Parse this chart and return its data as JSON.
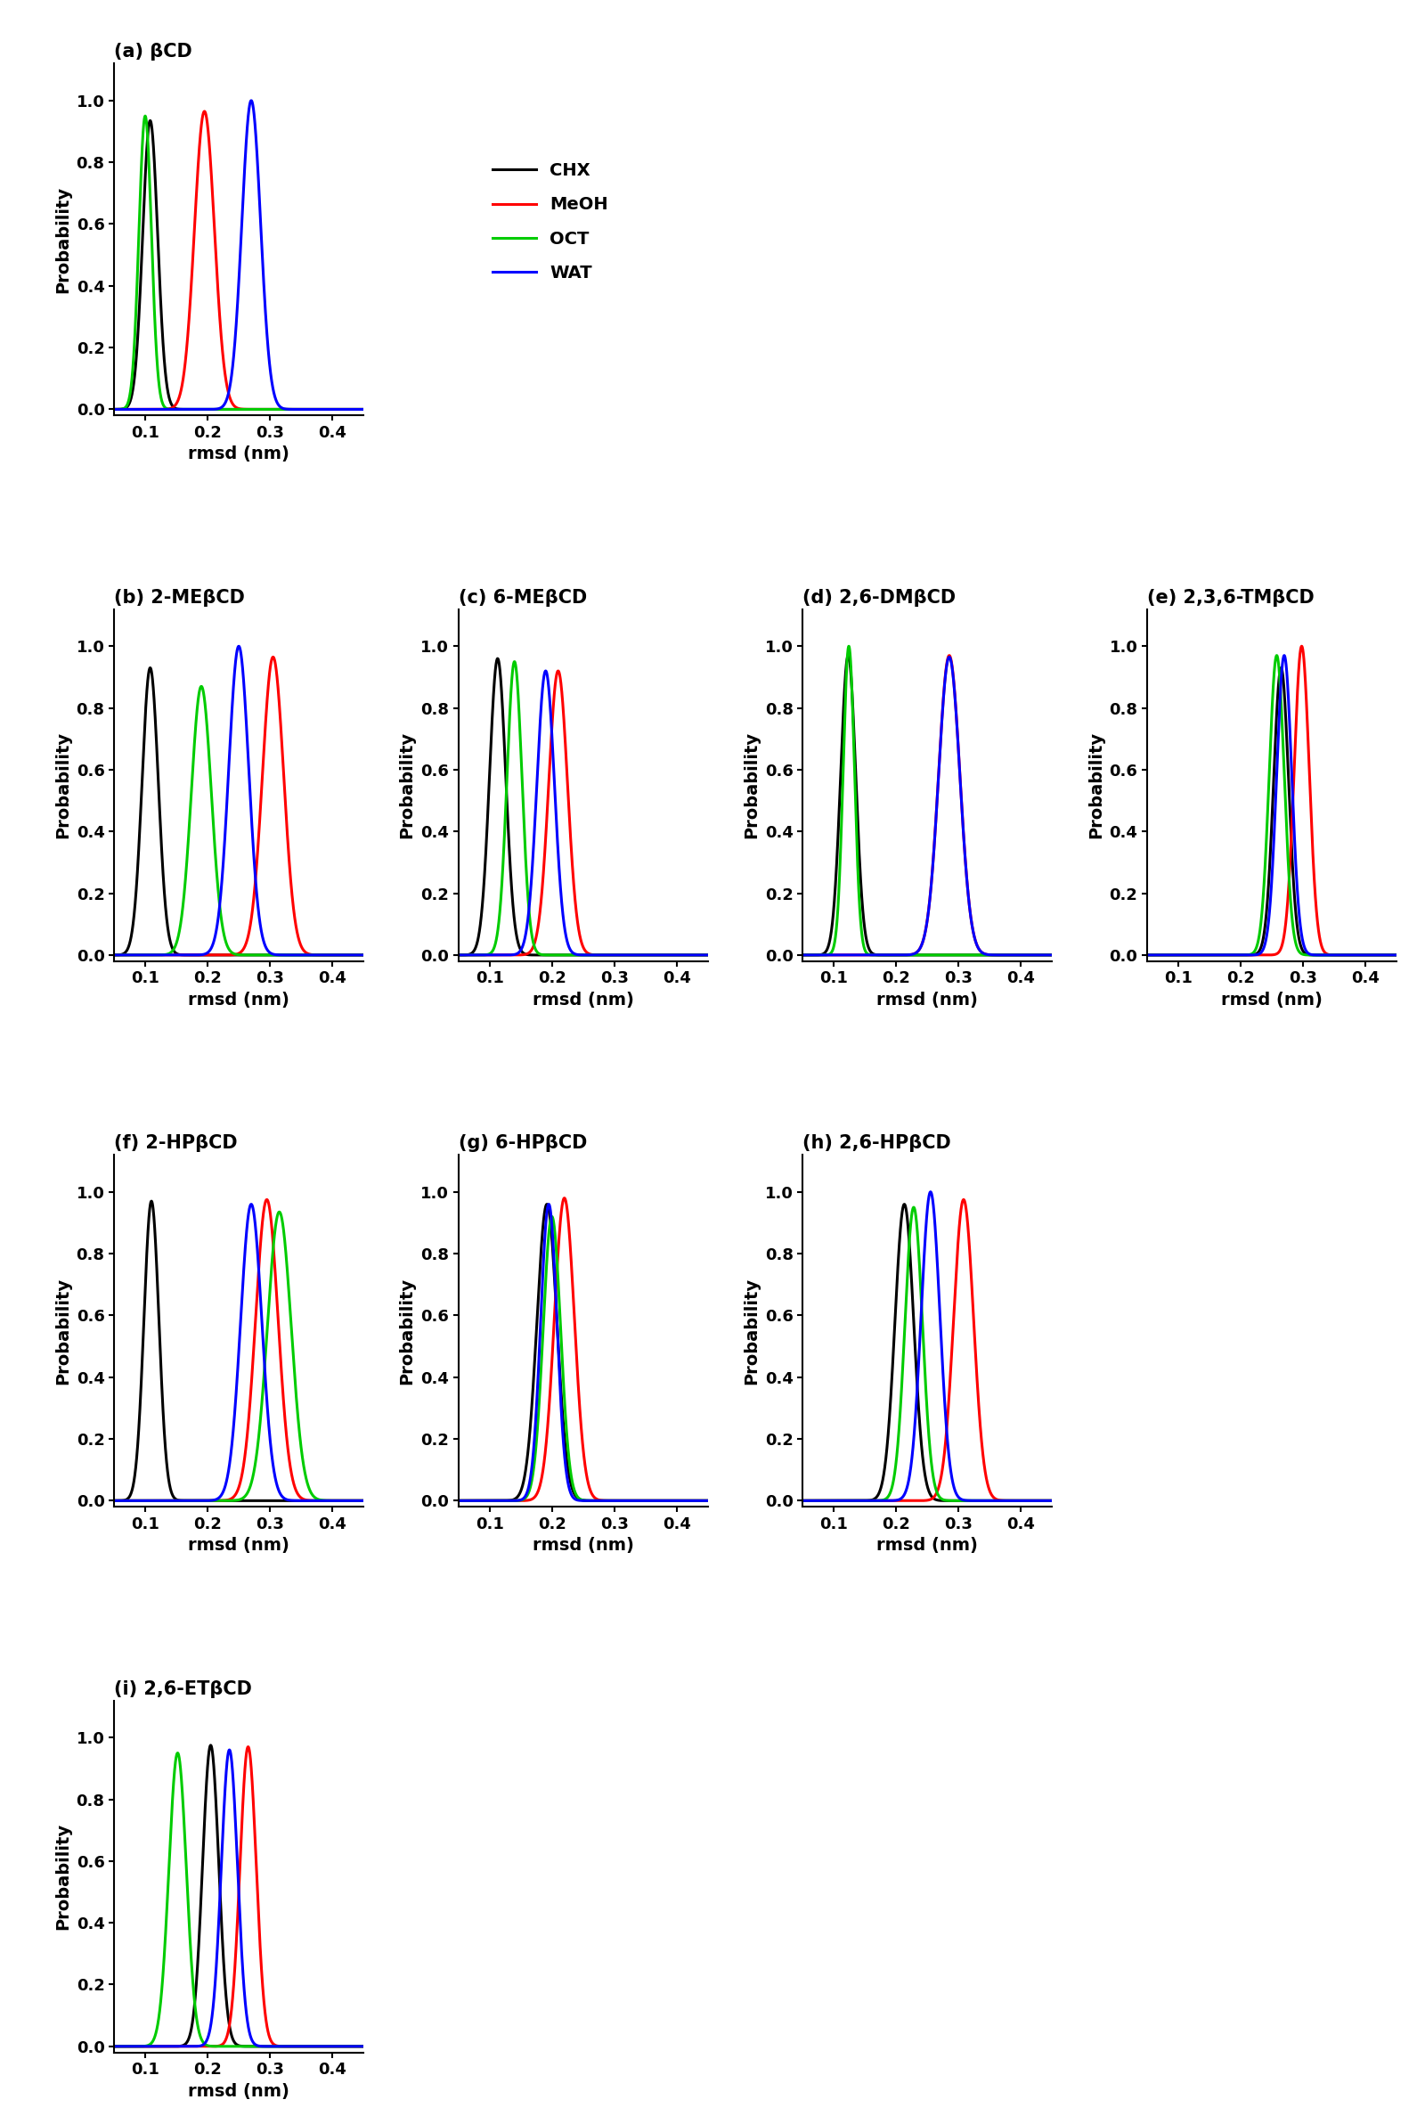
{
  "panels": [
    {
      "label": "(a) βCD",
      "curves": [
        {
          "color": "#000000",
          "mu": 0.108,
          "sigma": 0.012,
          "peak": 0.935
        },
        {
          "color": "#ff0000",
          "mu": 0.195,
          "sigma": 0.016,
          "peak": 0.965
        },
        {
          "color": "#00cc00",
          "mu": 0.1,
          "sigma": 0.01,
          "peak": 0.95
        },
        {
          "color": "#0000ff",
          "mu": 0.27,
          "sigma": 0.015,
          "peak": 1.0
        }
      ],
      "xlim": [
        0.05,
        0.45
      ],
      "xticks": [
        0.1,
        0.2,
        0.3,
        0.4
      ]
    },
    {
      "label": "(b) 2-MEβCD",
      "curves": [
        {
          "color": "#000000",
          "mu": 0.108,
          "sigma": 0.013,
          "peak": 0.93
        },
        {
          "color": "#ff0000",
          "mu": 0.305,
          "sigma": 0.017,
          "peak": 0.965
        },
        {
          "color": "#00cc00",
          "mu": 0.19,
          "sigma": 0.016,
          "peak": 0.87
        },
        {
          "color": "#0000ff",
          "mu": 0.25,
          "sigma": 0.016,
          "peak": 1.0
        }
      ],
      "xlim": [
        0.05,
        0.45
      ],
      "xticks": [
        0.1,
        0.2,
        0.3,
        0.4
      ]
    },
    {
      "label": "(c) 6-MEβCD",
      "curves": [
        {
          "color": "#000000",
          "mu": 0.113,
          "sigma": 0.013,
          "peak": 0.96
        },
        {
          "color": "#ff0000",
          "mu": 0.21,
          "sigma": 0.015,
          "peak": 0.92
        },
        {
          "color": "#00cc00",
          "mu": 0.14,
          "sigma": 0.012,
          "peak": 0.95
        },
        {
          "color": "#0000ff",
          "mu": 0.19,
          "sigma": 0.014,
          "peak": 0.92
        }
      ],
      "xlim": [
        0.05,
        0.45
      ],
      "xticks": [
        0.1,
        0.2,
        0.3,
        0.4
      ]
    },
    {
      "label": "(d) 2,6-DMβCD",
      "curves": [
        {
          "color": "#000000",
          "mu": 0.123,
          "sigma": 0.012,
          "peak": 0.97
        },
        {
          "color": "#ff0000",
          "mu": 0.285,
          "sigma": 0.017,
          "peak": 0.97
        },
        {
          "color": "#00cc00",
          "mu": 0.124,
          "sigma": 0.009,
          "peak": 1.0
        },
        {
          "color": "#0000ff",
          "mu": 0.285,
          "sigma": 0.017,
          "peak": 0.965
        }
      ],
      "xlim": [
        0.05,
        0.45
      ],
      "xticks": [
        0.1,
        0.2,
        0.3,
        0.4
      ]
    },
    {
      "label": "(e) 2,3,6-TMβCD",
      "curves": [
        {
          "color": "#000000",
          "mu": 0.265,
          "sigma": 0.012,
          "peak": 0.93
        },
        {
          "color": "#ff0000",
          "mu": 0.298,
          "sigma": 0.012,
          "peak": 1.0
        },
        {
          "color": "#00cc00",
          "mu": 0.258,
          "sigma": 0.012,
          "peak": 0.97
        },
        {
          "color": "#0000ff",
          "mu": 0.27,
          "sigma": 0.012,
          "peak": 0.97
        }
      ],
      "xlim": [
        0.05,
        0.45
      ],
      "xticks": [
        0.1,
        0.2,
        0.3,
        0.4
      ]
    },
    {
      "label": "(f) 2-HPβCD",
      "curves": [
        {
          "color": "#000000",
          "mu": 0.11,
          "sigma": 0.012,
          "peak": 0.97
        },
        {
          "color": "#ff0000",
          "mu": 0.295,
          "sigma": 0.018,
          "peak": 0.975
        },
        {
          "color": "#00cc00",
          "mu": 0.315,
          "sigma": 0.019,
          "peak": 0.935
        },
        {
          "color": "#0000ff",
          "mu": 0.27,
          "sigma": 0.017,
          "peak": 0.96
        }
      ],
      "xlim": [
        0.05,
        0.45
      ],
      "xticks": [
        0.1,
        0.2,
        0.3,
        0.4
      ]
    },
    {
      "label": "(g) 6-HPβCD",
      "curves": [
        {
          "color": "#000000",
          "mu": 0.192,
          "sigma": 0.016,
          "peak": 0.96
        },
        {
          "color": "#ff0000",
          "mu": 0.22,
          "sigma": 0.016,
          "peak": 0.98
        },
        {
          "color": "#00cc00",
          "mu": 0.2,
          "sigma": 0.014,
          "peak": 0.92
        },
        {
          "color": "#0000ff",
          "mu": 0.195,
          "sigma": 0.013,
          "peak": 0.96
        }
      ],
      "xlim": [
        0.05,
        0.45
      ],
      "xticks": [
        0.1,
        0.2,
        0.3,
        0.4
      ]
    },
    {
      "label": "(h) 2,6-HPβCD",
      "curves": [
        {
          "color": "#000000",
          "mu": 0.213,
          "sigma": 0.015,
          "peak": 0.96
        },
        {
          "color": "#ff0000",
          "mu": 0.308,
          "sigma": 0.016,
          "peak": 0.975
        },
        {
          "color": "#00cc00",
          "mu": 0.228,
          "sigma": 0.014,
          "peak": 0.95
        },
        {
          "color": "#0000ff",
          "mu": 0.255,
          "sigma": 0.015,
          "peak": 1.0
        }
      ],
      "xlim": [
        0.05,
        0.45
      ],
      "xticks": [
        0.1,
        0.2,
        0.3,
        0.4
      ]
    },
    {
      "label": "(i) 2,6-ETβCD",
      "curves": [
        {
          "color": "#000000",
          "mu": 0.205,
          "sigma": 0.013,
          "peak": 0.975
        },
        {
          "color": "#ff0000",
          "mu": 0.265,
          "sigma": 0.013,
          "peak": 0.97
        },
        {
          "color": "#00cc00",
          "mu": 0.152,
          "sigma": 0.014,
          "peak": 0.95
        },
        {
          "color": "#0000ff",
          "mu": 0.235,
          "sigma": 0.013,
          "peak": 0.96
        }
      ],
      "xlim": [
        0.05,
        0.45
      ],
      "xticks": [
        0.1,
        0.2,
        0.3,
        0.4
      ]
    }
  ],
  "legend_labels": [
    "CHX",
    "MeOH",
    "OCT",
    "WAT"
  ],
  "legend_colors": [
    "#000000",
    "#ff0000",
    "#00cc00",
    "#0000ff"
  ],
  "xlabel": "rmsd (nm)",
  "ylabel": "Probability",
  "ylim": [
    -0.02,
    1.12
  ],
  "yticks": [
    0.0,
    0.2,
    0.4,
    0.6,
    0.8,
    1.0
  ],
  "background": "#ffffff",
  "linewidth": 2.2,
  "label_fontsize": 14,
  "tick_fontsize": 13,
  "legend_fontsize": 14,
  "title_fontsize": 15
}
